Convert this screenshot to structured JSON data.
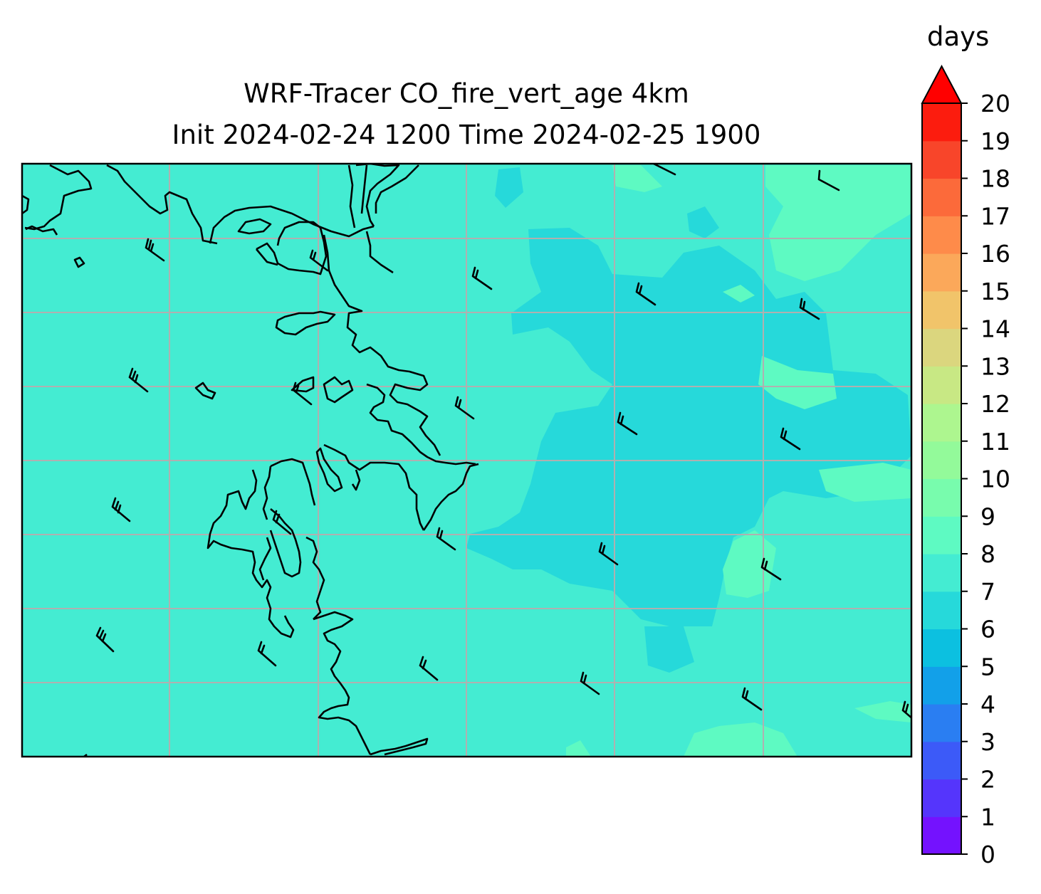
{
  "title": {
    "line1": "WRF-Tracer CO_fire_vert_age 4km",
    "line2": "Init 2024-02-24 1200 Time 2024-02-25 1900"
  },
  "colorbar": {
    "label": "days",
    "ticks": [
      "0",
      "1",
      "2",
      "3",
      "4",
      "5",
      "6",
      "7",
      "8",
      "9",
      "10",
      "11",
      "12",
      "13",
      "14",
      "15",
      "16",
      "17",
      "18",
      "19",
      "20"
    ],
    "extend": "max",
    "colors": [
      "#7412fe",
      "#5535fc",
      "#3c5af8",
      "#2a7ef2",
      "#12a0e9",
      "#0cc0e0",
      "#26d9da",
      "#44ecd2",
      "#5efac2",
      "#78fcad",
      "#93fa9a",
      "#adf68f",
      "#c8e884",
      "#dbd67e",
      "#f1c46a",
      "#fba85a",
      "#fe8b4a",
      "#fc6a3a",
      "#f8452a",
      "#fc1c0e"
    ],
    "over_color": "#ff0000"
  },
  "chart_data": {
    "type": "heatmap",
    "title": "WRF-Tracer CO_fire_vert_age 4km Init 2024-02-24 1200 Time 2024-02-25 1900",
    "variable": "CO_fire_vert_age",
    "units": "days",
    "value_range_shown": [
      6,
      9
    ],
    "dominant_color_level": "7-8",
    "grid": true,
    "overlays": [
      "coastlines",
      "wind barbs"
    ]
  }
}
